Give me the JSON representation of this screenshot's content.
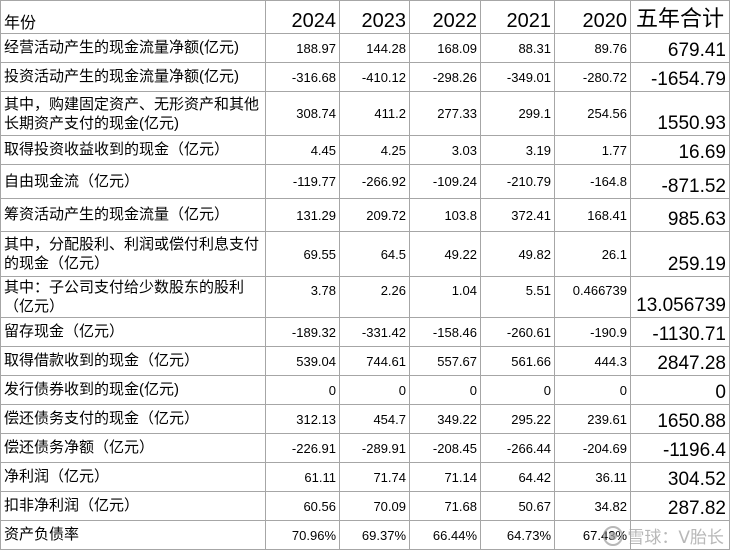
{
  "header": {
    "label": "年份",
    "years": [
      "2024",
      "2023",
      "2022",
      "2021",
      "2020"
    ],
    "total": "五年合计"
  },
  "rows": [
    {
      "label": "经营活动产生的现金流量净额(亿元)",
      "values": [
        "188.97",
        "144.28",
        "168.09",
        "88.31",
        "89.76"
      ],
      "total": "679.41"
    },
    {
      "label": "投资活动产生的现金流量净额(亿元)",
      "values": [
        "-316.68",
        "-410.12",
        "-298.26",
        "-349.01",
        "-280.72"
      ],
      "total": "-1654.79"
    },
    {
      "label": "其中，购建固定资产、无形资产和其他长期资产支付的现金(亿元)",
      "values": [
        "308.74",
        "411.2",
        "277.33",
        "299.1",
        "254.56"
      ],
      "total": "1550.93"
    },
    {
      "label": "取得投资收益收到的现金（亿元）",
      "values": [
        "4.45",
        "4.25",
        "3.03",
        "3.19",
        "1.77"
      ],
      "total": "16.69"
    },
    {
      "label": "自由现金流（亿元）",
      "values": [
        "-119.77",
        "-266.92",
        "-109.24",
        "-210.79",
        "-164.8"
      ],
      "total": "-871.52"
    },
    {
      "label": "筹资活动产生的现金流量（亿元）",
      "values": [
        "131.29",
        "209.72",
        "103.8",
        "372.41",
        "168.41"
      ],
      "total": "985.63"
    },
    {
      "label": "其中，分配股利、利润或偿付利息支付的现金（亿元）",
      "values": [
        "69.55",
        "64.5",
        "49.22",
        "49.82",
        "26.1"
      ],
      "total": "259.19"
    },
    {
      "label": "其中：子公司支付给少数股东的股利（亿元）",
      "values": [
        "3.78",
        "2.26",
        "1.04",
        "5.51",
        "0.466739"
      ],
      "total": "13.056739"
    },
    {
      "label": "留存现金（亿元）",
      "values": [
        "-189.32",
        "-331.42",
        "-158.46",
        "-260.61",
        "-190.9"
      ],
      "total": "-1130.71"
    },
    {
      "label": "取得借款收到的现金（亿元）",
      "values": [
        "539.04",
        "744.61",
        "557.67",
        "561.66",
        "444.3"
      ],
      "total": "2847.28"
    },
    {
      "label": "发行债券收到的现金(亿元)",
      "values": [
        "0",
        "0",
        "0",
        "0",
        "0"
      ],
      "total": "0"
    },
    {
      "label": "偿还债务支付的现金（亿元）",
      "values": [
        "312.13",
        "454.7",
        "349.22",
        "295.22",
        "239.61"
      ],
      "total": "1650.88"
    },
    {
      "label": "偿还债务净额（亿元）",
      "values": [
        "-226.91",
        "-289.91",
        "-208.45",
        "-266.44",
        "-204.69"
      ],
      "total": "-1196.4"
    },
    {
      "label": "净利润（亿元）",
      "values": [
        "61.11",
        "71.74",
        "71.14",
        "64.42",
        "36.11"
      ],
      "total": "304.52"
    },
    {
      "label": "扣非净利润（亿元）",
      "values": [
        "60.56",
        "70.09",
        "71.68",
        "50.67",
        "34.82"
      ],
      "total": "287.82"
    },
    {
      "label": "资产负债率",
      "values": [
        "70.96%",
        "69.37%",
        "66.44%",
        "64.73%",
        "67.43%"
      ],
      "total": ""
    }
  ],
  "watermark": "雪球：V胎长"
}
